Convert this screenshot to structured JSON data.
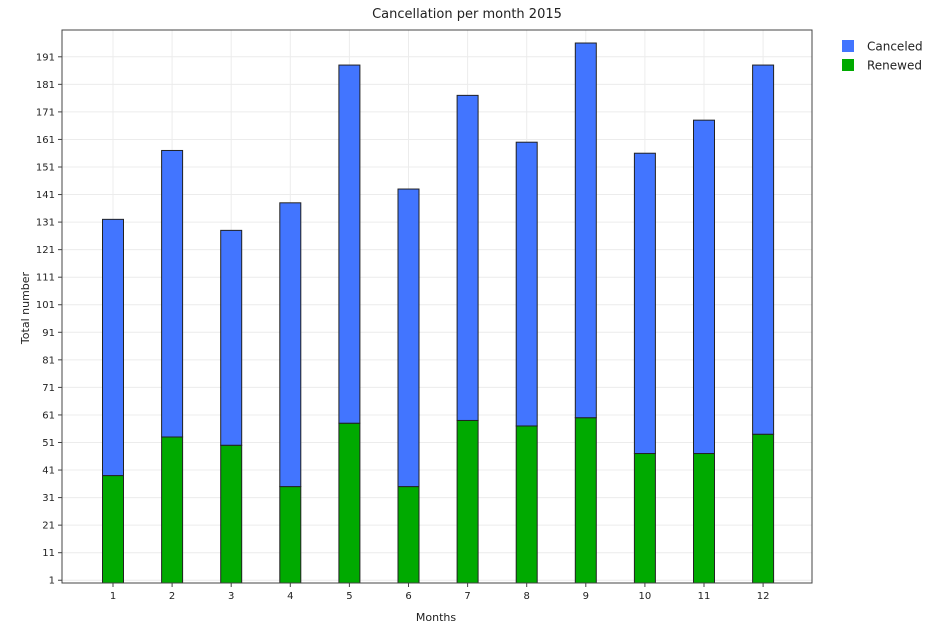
{
  "chart_data": {
    "type": "bar",
    "stacked": true,
    "title": "Cancellation per month 2015",
    "xlabel": "Months",
    "ylabel": "Total number",
    "categories": [
      "1",
      "2",
      "3",
      "4",
      "5",
      "6",
      "7",
      "8",
      "9",
      "10",
      "11",
      "12"
    ],
    "yticks": [
      "1",
      "11",
      "21",
      "31",
      "41",
      "51",
      "61",
      "71",
      "81",
      "91",
      "101",
      "111",
      "121",
      "131",
      "141",
      "151",
      "161",
      "171",
      "181",
      "191"
    ],
    "ylim": [
      0,
      200
    ],
    "grid": true,
    "legend_position": "top-right-outside",
    "series": [
      {
        "name": "Renewed",
        "color": "#00aa00",
        "values": [
          39,
          53,
          50,
          35,
          58,
          35,
          59,
          57,
          60,
          47,
          47,
          54
        ]
      },
      {
        "name": "Canceled",
        "color": "#4275ff",
        "values": [
          93,
          104,
          78,
          103,
          130,
          108,
          118,
          103,
          136,
          109,
          121,
          134
        ]
      }
    ],
    "legend": [
      {
        "label": "Canceled",
        "color": "#4275ff"
      },
      {
        "label": "Renewed",
        "color": "#00aa00"
      }
    ]
  }
}
